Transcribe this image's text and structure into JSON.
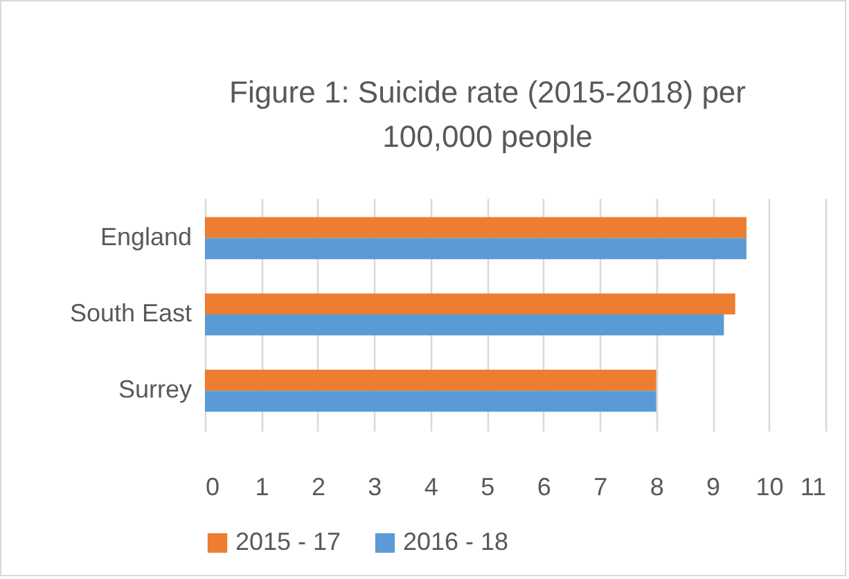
{
  "chart_data": {
    "type": "bar",
    "orientation": "horizontal",
    "title": "Figure 1: Suicide rate (2015-2018) per 100,000 people",
    "categories": [
      "England",
      "South East",
      "Surrey"
    ],
    "series": [
      {
        "name": "2015 - 17",
        "color": "#ed7d31",
        "values": [
          9.6,
          9.4,
          8.0
        ]
      },
      {
        "name": "2016 - 18",
        "color": "#5b9bd5",
        "values": [
          9.6,
          9.2,
          8.0
        ]
      }
    ],
    "xlim": [
      0,
      11
    ],
    "xticks": [
      0,
      1,
      2,
      3,
      4,
      5,
      6,
      7,
      8,
      9,
      10,
      11
    ],
    "grid": "x",
    "legend": "bottom"
  }
}
